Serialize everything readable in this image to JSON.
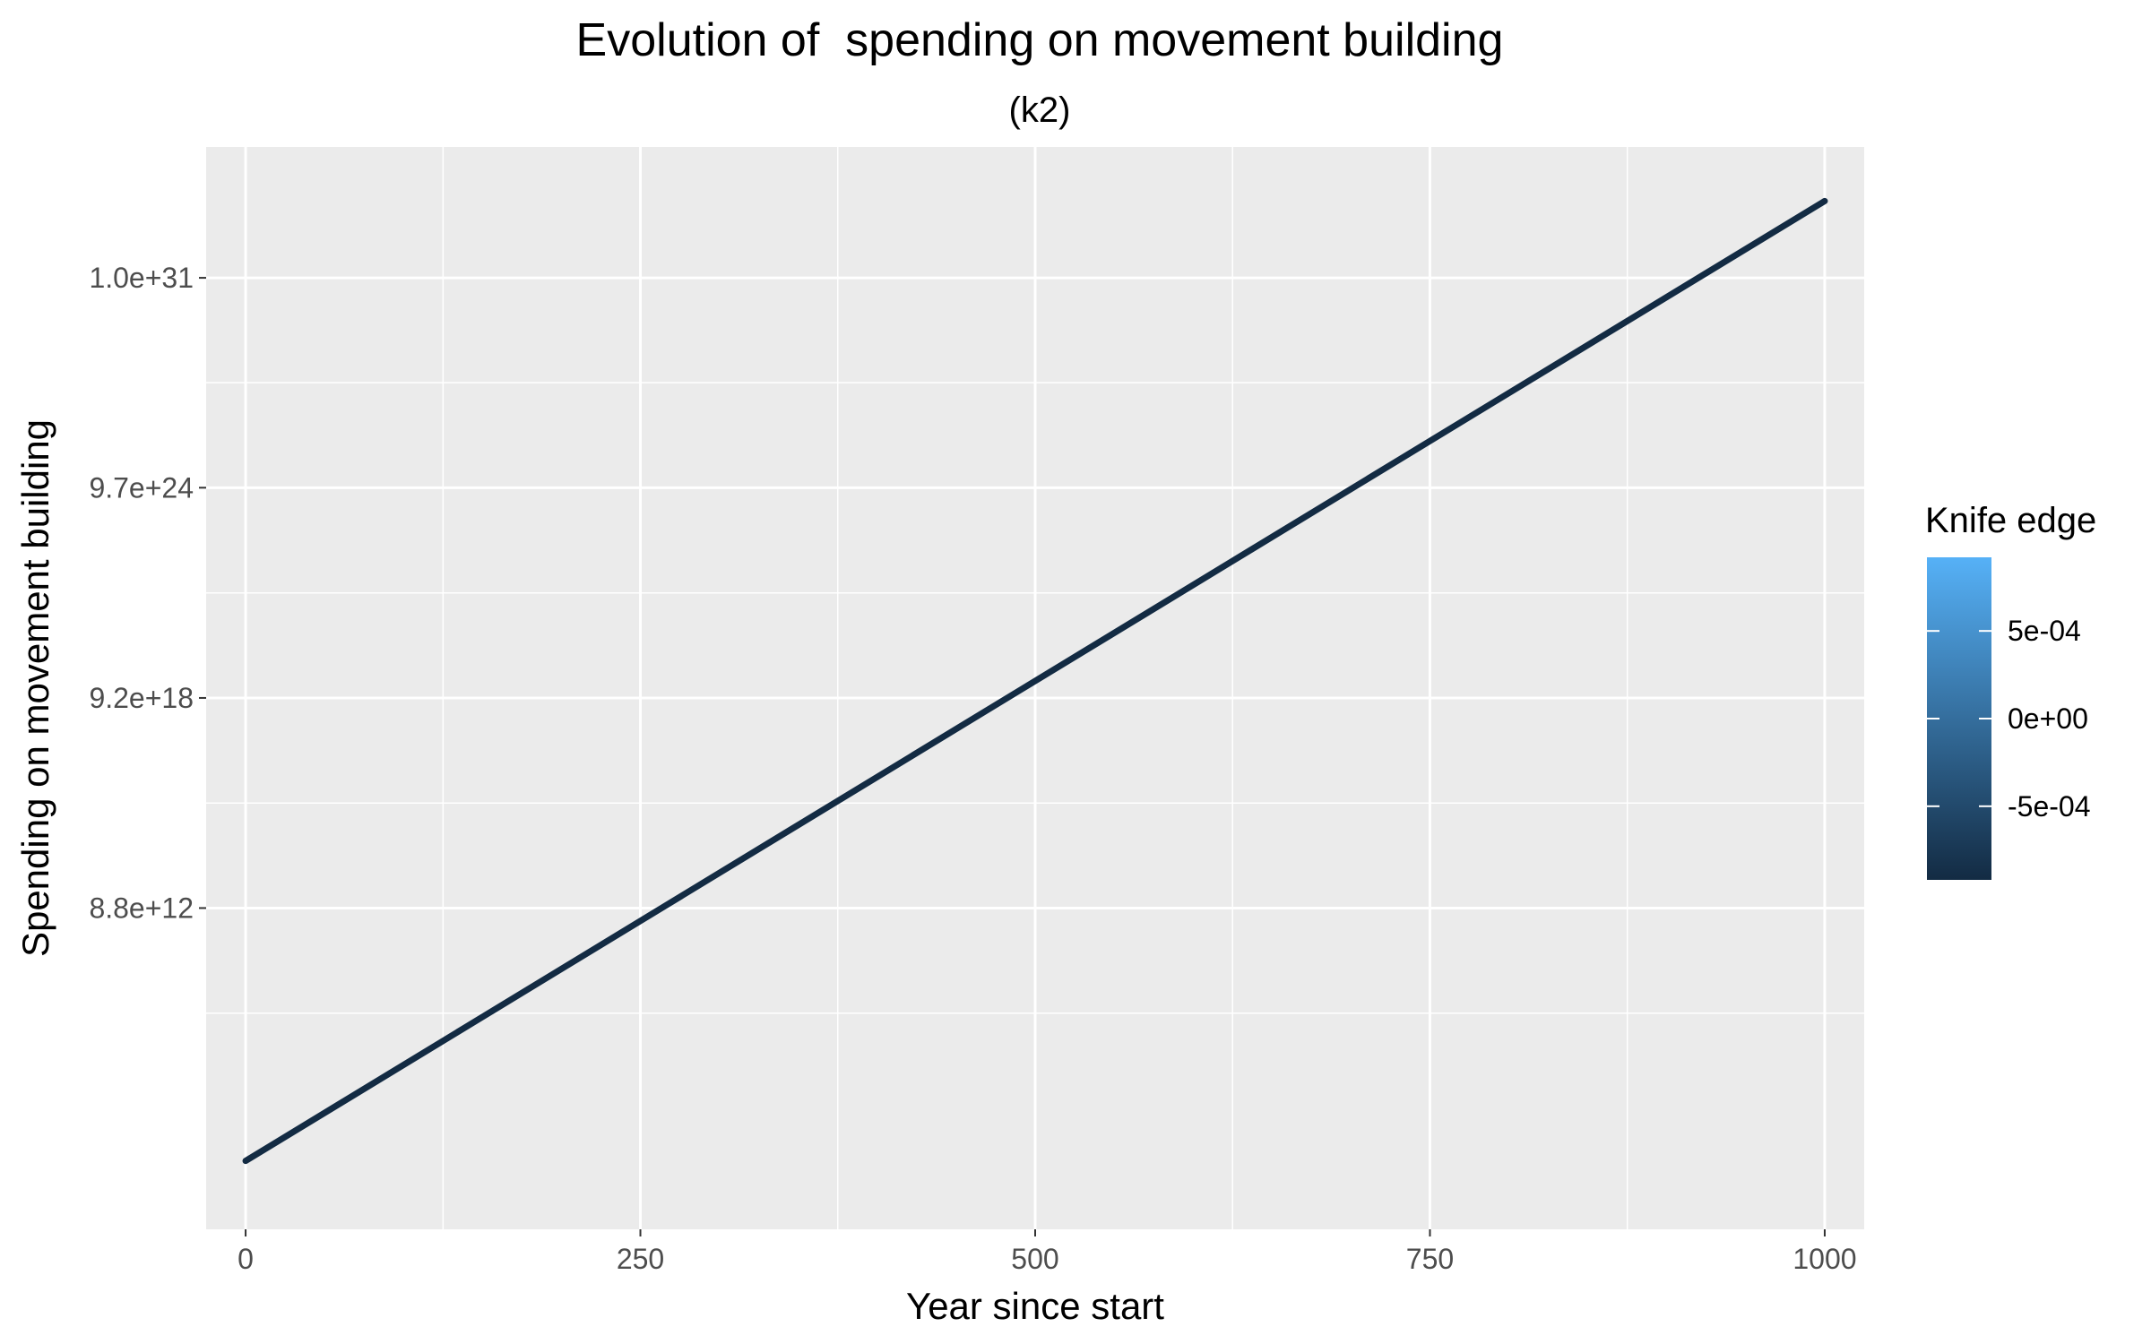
{
  "chart_data": {
    "type": "line",
    "title": "Evolution of  spending on movement building",
    "subtitle": "(k2)",
    "xlabel": "Year since start",
    "ylabel": "Spending on movement building",
    "y_scale": "log",
    "xlim": [
      -25,
      1025
    ],
    "ylim_log10": [
      3.74,
      34.75
    ],
    "x_ticks": [
      0,
      250,
      500,
      750,
      1000
    ],
    "x_tick_labels": [
      "0",
      "250",
      "500",
      "750",
      "1000"
    ],
    "y_ticks_log10": [
      12.944,
      18.964,
      24.987,
      31.0
    ],
    "y_tick_labels": [
      "8.8e+12",
      "9.2e+18",
      "9.7e+24",
      "1.0e+31"
    ],
    "grid": true,
    "panel_background": "#ebebeb",
    "series": [
      {
        "color": "#132b43",
        "x": [
          0,
          1000
        ],
        "y_log10": [
          5.7,
          33.2
        ]
      }
    ],
    "legend": {
      "title": "Knife edge",
      "type": "colorbar",
      "placement": "right",
      "breaks": [
        0.0005,
        0.0,
        -0.0005
      ],
      "labels": [
        "5e-04",
        "0e+00",
        "-5e-04"
      ],
      "range": [
        -0.00092,
        0.00092
      ],
      "low_color": "#132b43",
      "high_color": "#56b1f7"
    }
  }
}
